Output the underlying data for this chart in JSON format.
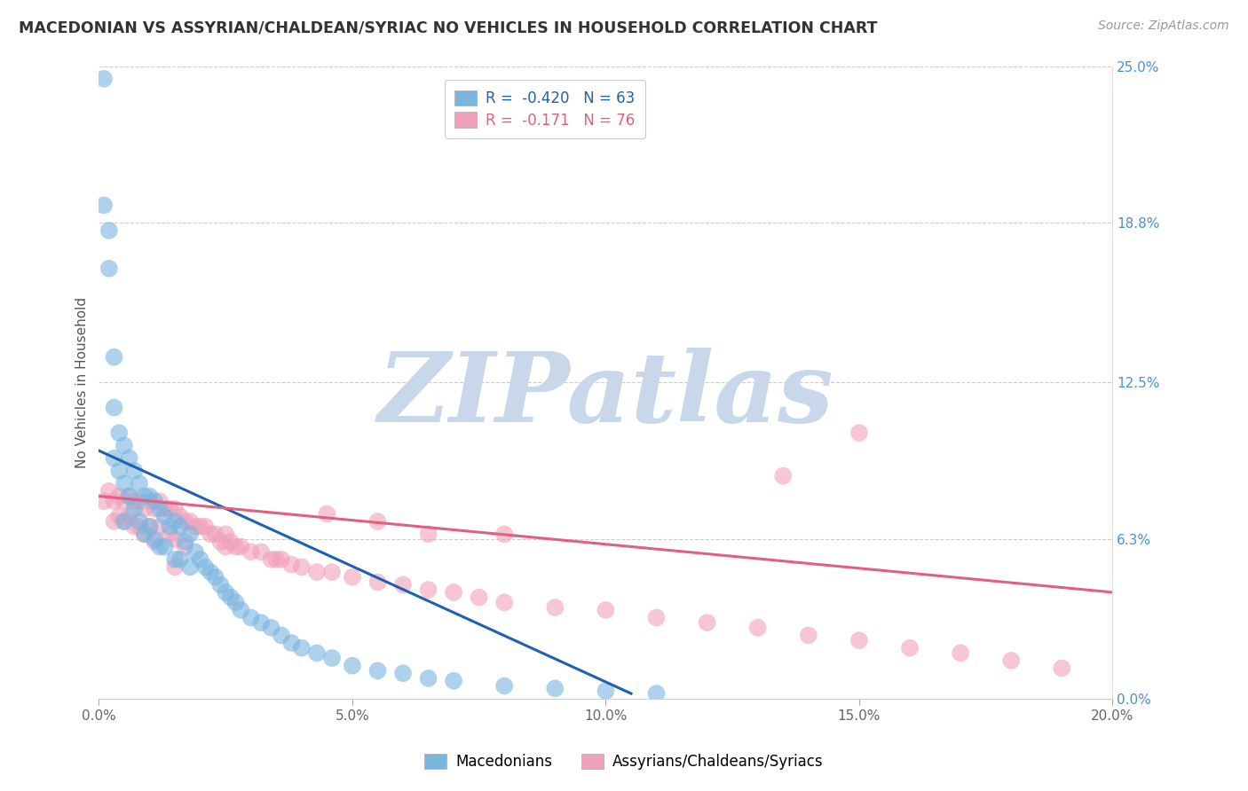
{
  "title": "MACEDONIAN VS ASSYRIAN/CHALDEAN/SYRIAC NO VEHICLES IN HOUSEHOLD CORRELATION CHART",
  "source": "Source: ZipAtlas.com",
  "ylabel": "No Vehicles in Household",
  "xlim": [
    0.0,
    0.2
  ],
  "ylim": [
    0.0,
    0.25
  ],
  "xticks": [
    0.0,
    0.05,
    0.1,
    0.15,
    0.2
  ],
  "xticklabels": [
    "0.0%",
    "5.0%",
    "10.0%",
    "15.0%",
    "20.0%"
  ],
  "yticks_right": [
    0.0,
    0.063,
    0.125,
    0.188,
    0.25
  ],
  "ytick_right_labels": [
    "0.0%",
    "6.3%",
    "12.5%",
    "18.8%",
    "25.0%"
  ],
  "blue_color": "#7ab5e0",
  "pink_color": "#f0a0b8",
  "blue_line_color": "#2060b0",
  "pink_line_color": "#e06080",
  "blue_label": "Macedonians",
  "pink_label": "Assyrians/Chaldeans/Syriacs",
  "blue_R": -0.42,
  "blue_N": 63,
  "pink_R": -0.171,
  "pink_N": 76,
  "watermark": "ZIPatlas",
  "watermark_color": "#c8d8ea",
  "blue_scatter_x": [
    0.001,
    0.001,
    0.002,
    0.002,
    0.003,
    0.003,
    0.003,
    0.004,
    0.004,
    0.005,
    0.005,
    0.005,
    0.006,
    0.006,
    0.007,
    0.007,
    0.008,
    0.008,
    0.009,
    0.009,
    0.01,
    0.01,
    0.011,
    0.011,
    0.012,
    0.012,
    0.013,
    0.013,
    0.014,
    0.015,
    0.015,
    0.016,
    0.016,
    0.017,
    0.018,
    0.018,
    0.019,
    0.02,
    0.021,
    0.022,
    0.023,
    0.024,
    0.025,
    0.026,
    0.027,
    0.028,
    0.03,
    0.032,
    0.034,
    0.036,
    0.038,
    0.04,
    0.043,
    0.046,
    0.05,
    0.055,
    0.06,
    0.065,
    0.07,
    0.08,
    0.09,
    0.1,
    0.11
  ],
  "blue_scatter_y": [
    0.245,
    0.195,
    0.185,
    0.17,
    0.135,
    0.115,
    0.095,
    0.105,
    0.09,
    0.1,
    0.085,
    0.07,
    0.095,
    0.08,
    0.09,
    0.075,
    0.085,
    0.07,
    0.08,
    0.065,
    0.08,
    0.068,
    0.078,
    0.063,
    0.075,
    0.06,
    0.072,
    0.06,
    0.068,
    0.07,
    0.055,
    0.068,
    0.055,
    0.062,
    0.065,
    0.052,
    0.058,
    0.055,
    0.052,
    0.05,
    0.048,
    0.045,
    0.042,
    0.04,
    0.038,
    0.035,
    0.032,
    0.03,
    0.028,
    0.025,
    0.022,
    0.02,
    0.018,
    0.016,
    0.013,
    0.011,
    0.01,
    0.008,
    0.007,
    0.005,
    0.004,
    0.003,
    0.002
  ],
  "pink_scatter_x": [
    0.001,
    0.002,
    0.003,
    0.003,
    0.004,
    0.004,
    0.005,
    0.005,
    0.006,
    0.006,
    0.007,
    0.007,
    0.008,
    0.008,
    0.009,
    0.009,
    0.01,
    0.01,
    0.011,
    0.011,
    0.012,
    0.012,
    0.013,
    0.014,
    0.014,
    0.015,
    0.015,
    0.016,
    0.017,
    0.017,
    0.018,
    0.019,
    0.02,
    0.021,
    0.022,
    0.023,
    0.024,
    0.025,
    0.026,
    0.027,
    0.028,
    0.03,
    0.032,
    0.034,
    0.036,
    0.038,
    0.04,
    0.043,
    0.046,
    0.05,
    0.055,
    0.06,
    0.065,
    0.07,
    0.075,
    0.08,
    0.09,
    0.1,
    0.11,
    0.12,
    0.13,
    0.14,
    0.15,
    0.16,
    0.17,
    0.18,
    0.19,
    0.15,
    0.135,
    0.08,
    0.065,
    0.055,
    0.045,
    0.035,
    0.025,
    0.015
  ],
  "pink_scatter_y": [
    0.078,
    0.082,
    0.078,
    0.07,
    0.08,
    0.072,
    0.078,
    0.07,
    0.08,
    0.072,
    0.078,
    0.068,
    0.078,
    0.068,
    0.075,
    0.065,
    0.078,
    0.068,
    0.075,
    0.062,
    0.078,
    0.068,
    0.075,
    0.075,
    0.065,
    0.075,
    0.063,
    0.072,
    0.07,
    0.06,
    0.07,
    0.068,
    0.068,
    0.068,
    0.065,
    0.065,
    0.062,
    0.065,
    0.062,
    0.06,
    0.06,
    0.058,
    0.058,
    0.055,
    0.055,
    0.053,
    0.052,
    0.05,
    0.05,
    0.048,
    0.046,
    0.045,
    0.043,
    0.042,
    0.04,
    0.038,
    0.036,
    0.035,
    0.032,
    0.03,
    0.028,
    0.025,
    0.023,
    0.02,
    0.018,
    0.015,
    0.012,
    0.105,
    0.088,
    0.065,
    0.065,
    0.07,
    0.073,
    0.055,
    0.06,
    0.052
  ],
  "blue_trend_x": [
    0.0,
    0.105
  ],
  "blue_trend_y": [
    0.098,
    0.002
  ],
  "pink_trend_x": [
    0.0,
    0.2
  ],
  "pink_trend_y": [
    0.08,
    0.042
  ]
}
